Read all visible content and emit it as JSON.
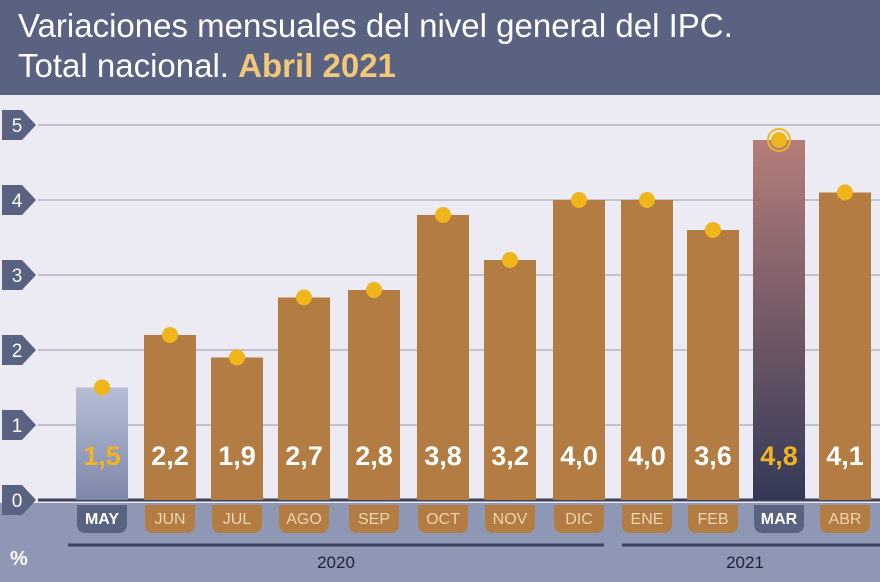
{
  "header": {
    "title_line1": "Variaciones mensuales del nivel general del IPC.",
    "title_line2_prefix": "Total nacional.",
    "title_line2_highlight": "Abril 2021"
  },
  "colors": {
    "header_bg": "#5a6282",
    "highlight": "#f1c779",
    "bar": "#b27c42",
    "dot": "#f1b51c",
    "highlight_label": "#f2b320",
    "first_bar_top": "#b6bed6",
    "first_bar_bottom": "#7d87a8",
    "mar_bar_top": "#b57d7a",
    "mar_bar_bottom": "#343957"
  },
  "chart_data": {
    "type": "bar",
    "categories": [
      "MAY",
      "JUN",
      "JUL",
      "AGO",
      "SEP",
      "OCT",
      "NOV",
      "DIC",
      "ENE",
      "FEB",
      "MAR",
      "ABR"
    ],
    "values": [
      1.5,
      2.2,
      1.9,
      2.7,
      2.8,
      3.8,
      3.2,
      4.0,
      4.0,
      3.6,
      4.8,
      4.1
    ],
    "value_labels": [
      "1,5",
      "2,2",
      "1,9",
      "2,7",
      "2,8",
      "3,8",
      "3,2",
      "4,0",
      "4,0",
      "3,6",
      "4,8",
      "4,1"
    ],
    "highlighted": [
      "MAY",
      "MAR"
    ],
    "ylim": [
      0,
      5
    ],
    "yticks": [
      "0",
      "1",
      "2",
      "3",
      "4",
      "5"
    ],
    "ylabel": "%",
    "year_groups": [
      {
        "label": "2020",
        "from": "MAY",
        "to": "DIC"
      },
      {
        "label": "2021",
        "from": "ENE",
        "to": "ABR"
      }
    ],
    "grid": true
  }
}
